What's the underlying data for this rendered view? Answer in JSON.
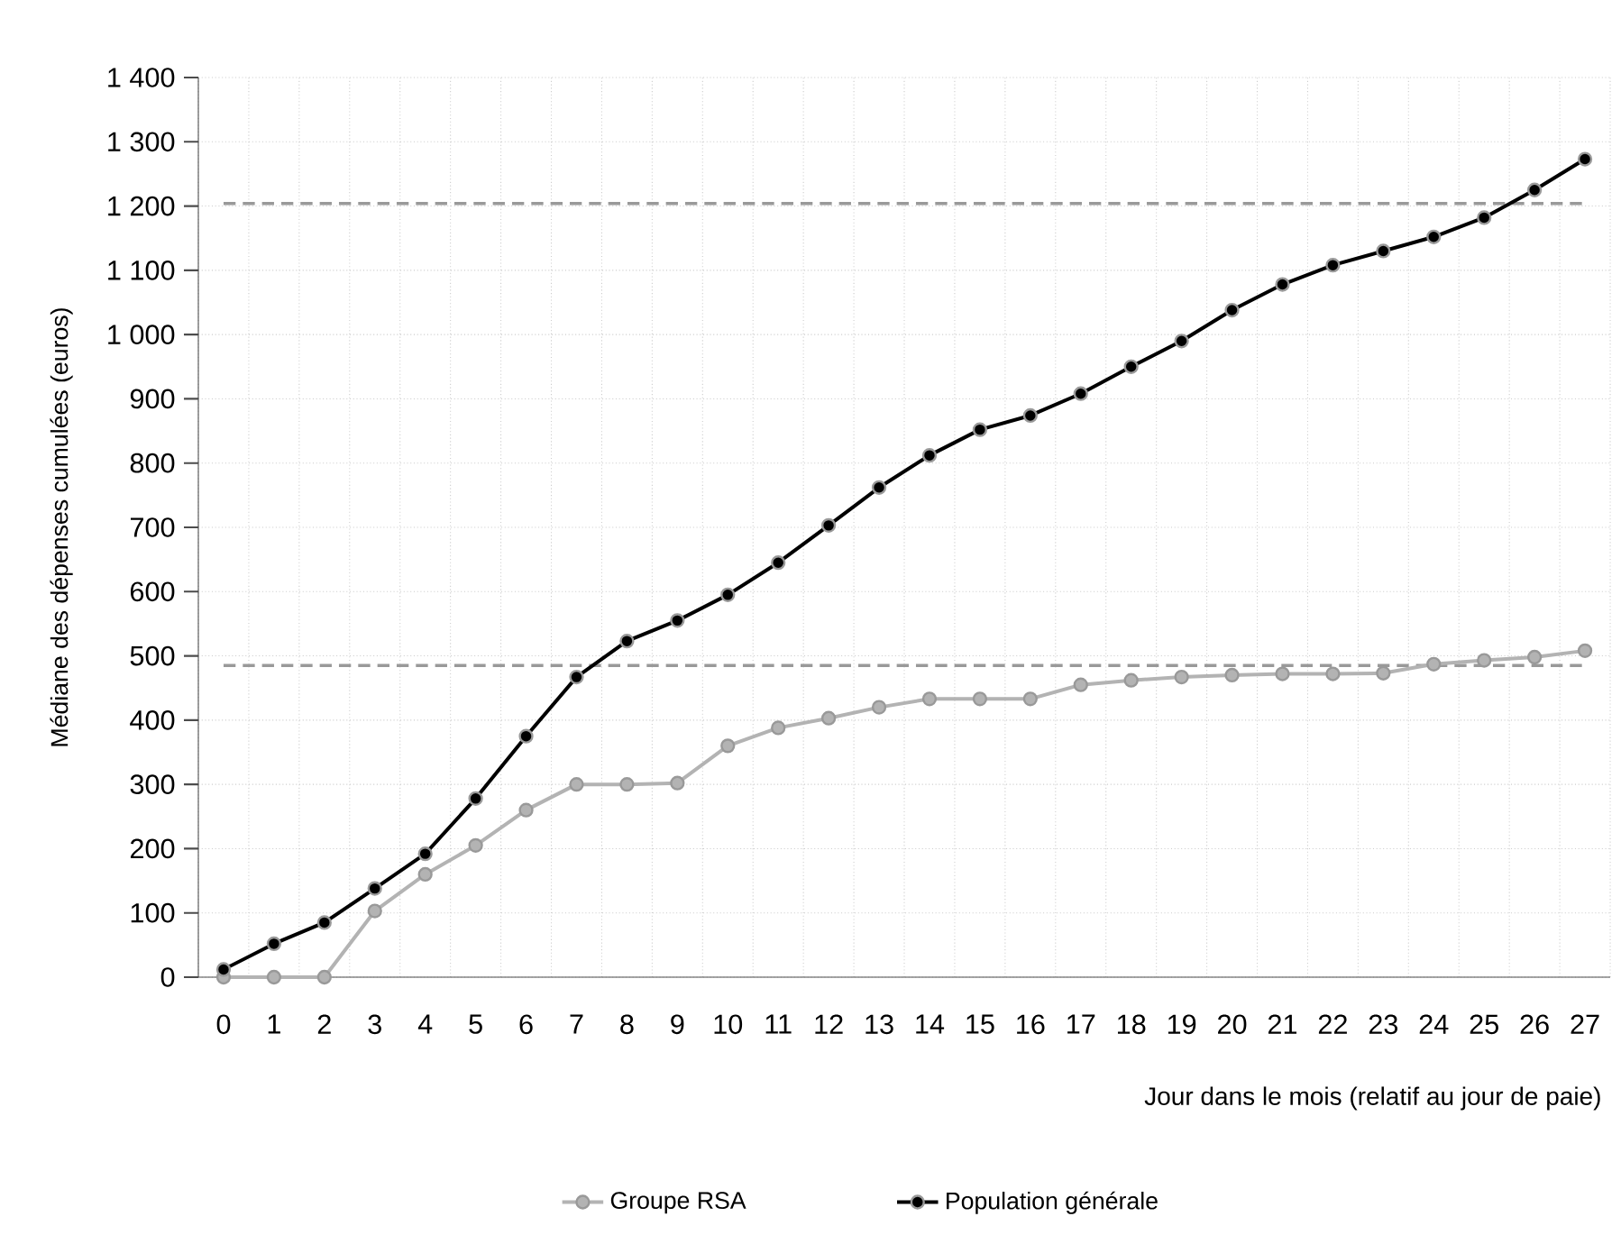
{
  "chart_data": {
    "type": "line",
    "xlabel": "Jour dans le mois (relatif au jour de paie)",
    "ylabel": "Médiane des dépenses cumulées (euros)",
    "categories": [
      "0",
      "1",
      "2",
      "3",
      "4",
      "5",
      "6",
      "7",
      "8",
      "9",
      "10",
      "11",
      "12",
      "13",
      "14",
      "15",
      "16",
      "17",
      "18",
      "19",
      "20",
      "21",
      "22",
      "23",
      "24",
      "25",
      "26",
      "27"
    ],
    "series": [
      {
        "name": "Groupe RSA",
        "color": "#b3b3b3",
        "values": [
          0,
          0,
          0,
          103,
          160,
          205,
          260,
          300,
          300,
          302,
          360,
          388,
          403,
          420,
          433,
          433,
          433,
          455,
          462,
          467,
          470,
          472,
          472,
          473,
          487,
          493,
          498,
          508
        ]
      },
      {
        "name": "Population générale",
        "color": "#000000",
        "values": [
          12,
          52,
          85,
          138,
          192,
          278,
          375,
          467,
          523,
          555,
          595,
          645,
          703,
          762,
          812,
          852,
          874,
          908,
          950,
          990,
          1038,
          1078,
          1108,
          1130,
          1152,
          1182,
          1225,
          1273
        ]
      }
    ],
    "ylim": [
      0,
      1400
    ],
    "yticks": [
      0,
      100,
      200,
      300,
      400,
      500,
      600,
      700,
      800,
      900,
      {
        "value": 1000,
        "label": "1 000"
      },
      {
        "value": 1100,
        "label": "1 100"
      },
      {
        "value": 1200,
        "label": "1 200"
      },
      {
        "value": 1300,
        "label": "1 300"
      },
      {
        "value": 1400,
        "label": "1 400"
      }
    ],
    "ref_lines": [
      {
        "axis": "y",
        "value": 1204,
        "color": "#999999",
        "line_style": "dashed"
      },
      {
        "axis": "y",
        "value": 485,
        "color": "#999999",
        "line_style": "dashed"
      }
    ],
    "grid": true,
    "legend": "bottom",
    "marker": "circle",
    "line_style": "solid"
  }
}
